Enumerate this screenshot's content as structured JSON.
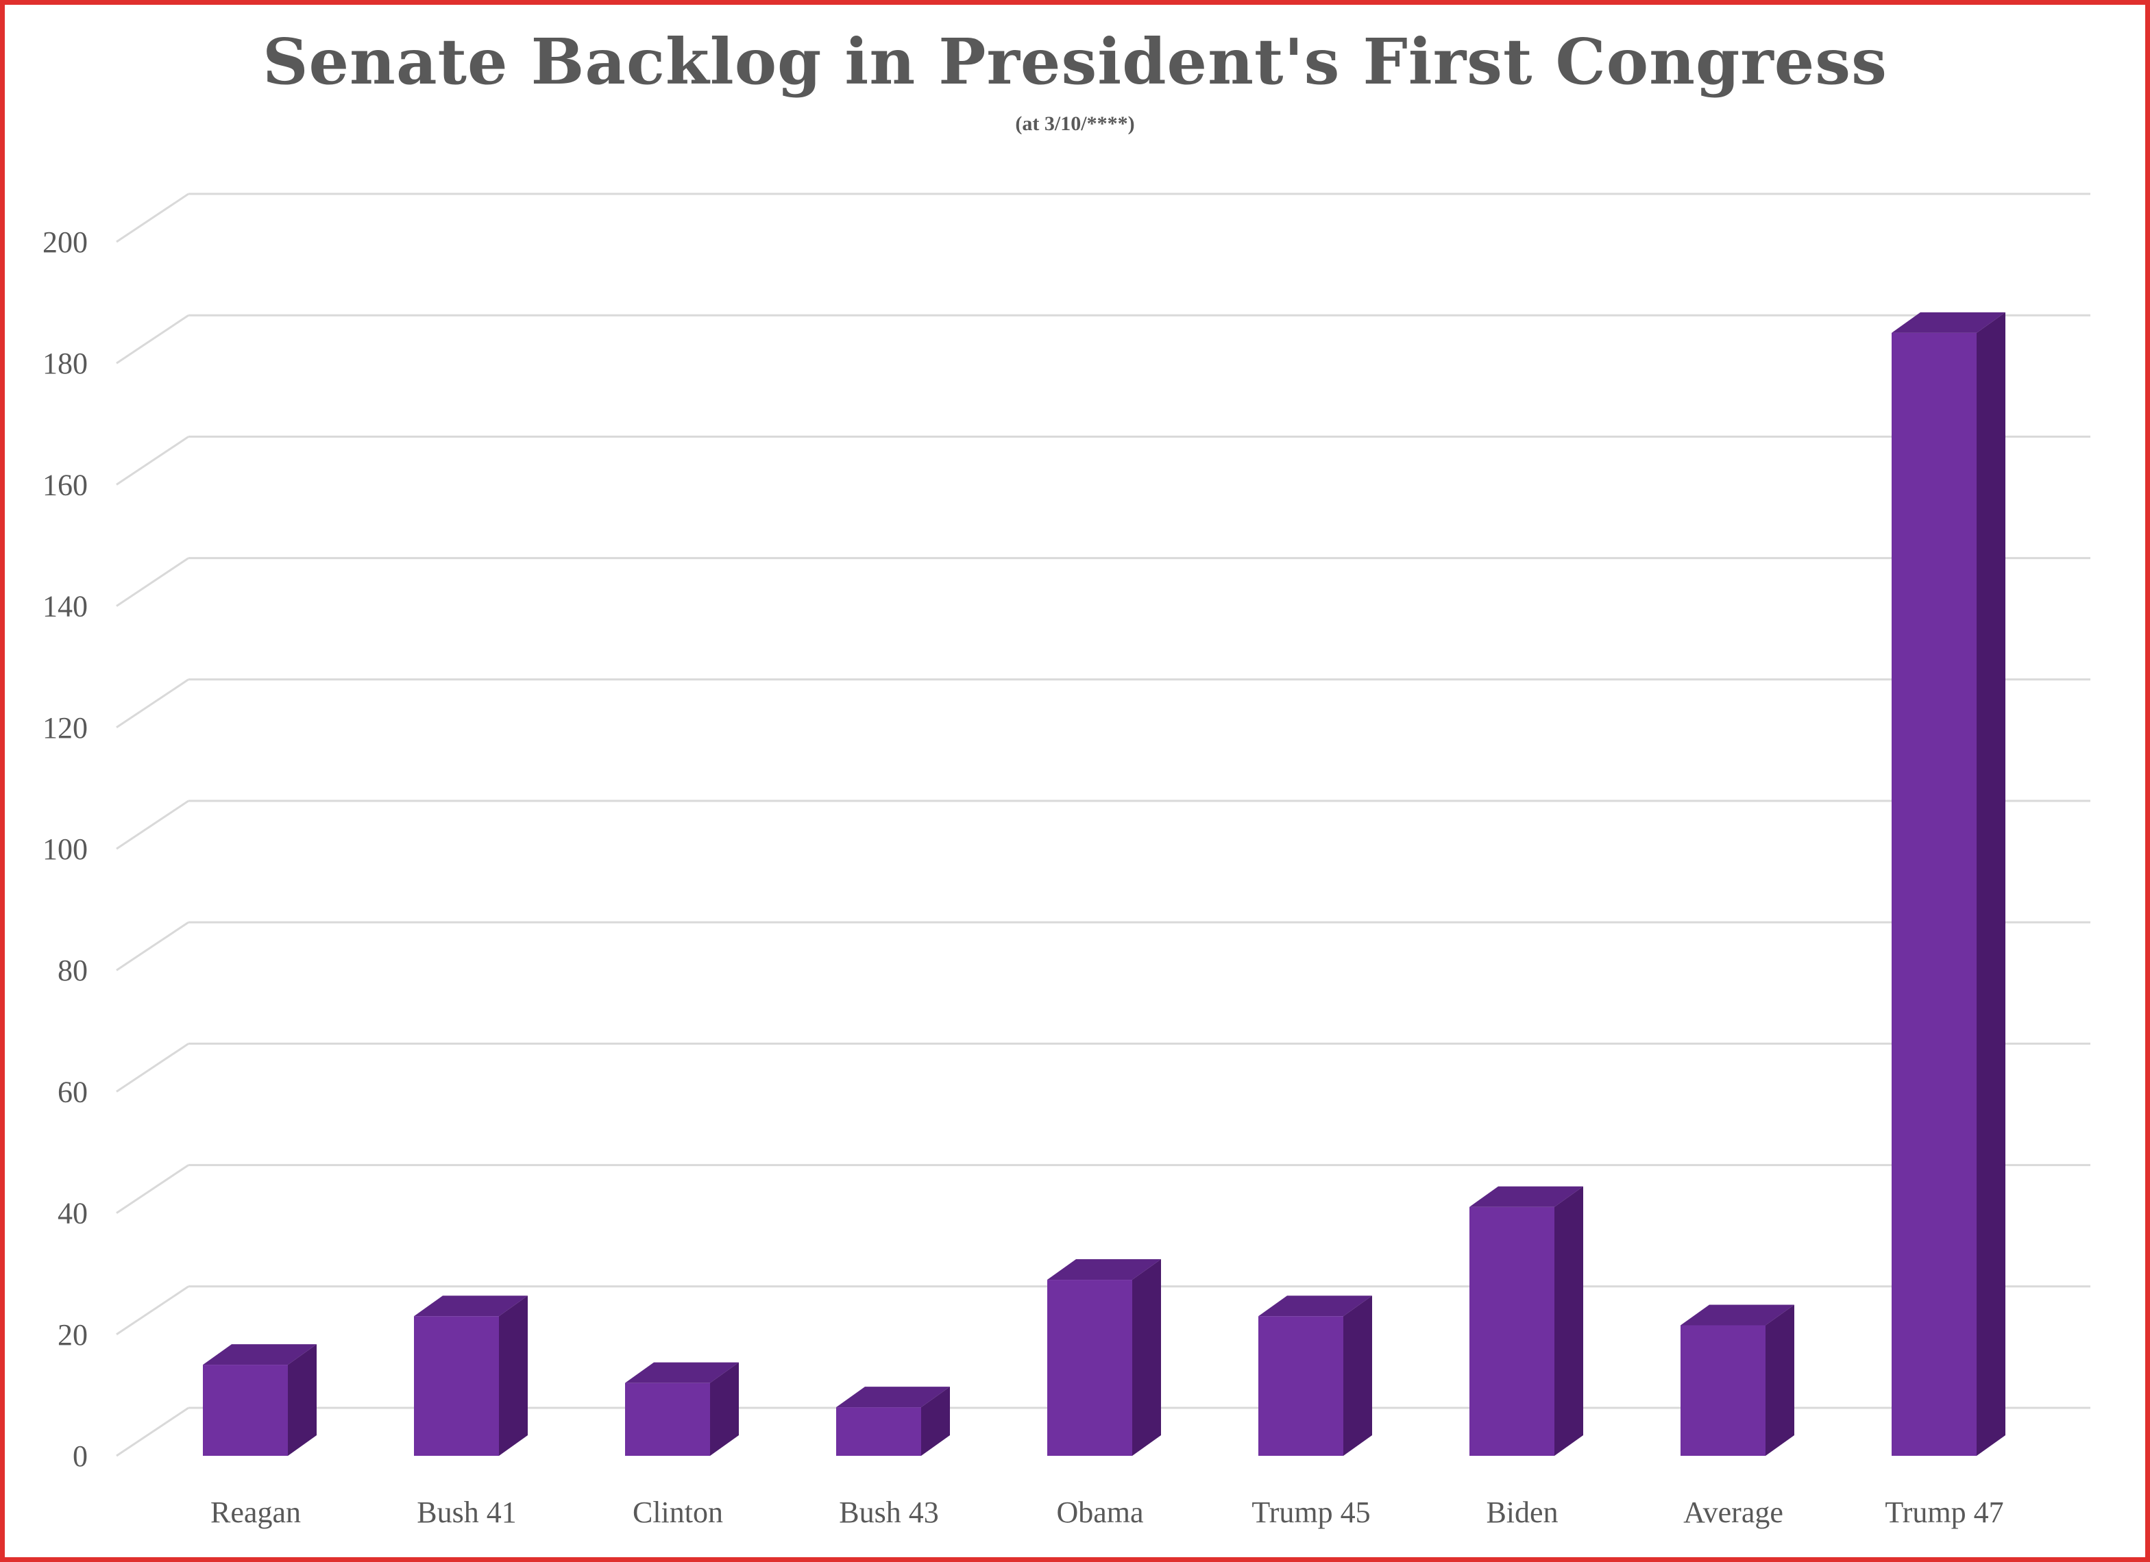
{
  "chart_data": {
    "type": "bar",
    "title": "Senate Backlog in President's First Congress",
    "subtitle": "(at 3/10/****)",
    "categories": [
      "Reagan",
      "Bush 41",
      "Clinton",
      "Bush 43",
      "Obama",
      "Trump 45",
      "Biden",
      "Average",
      "Trump 47"
    ],
    "values": [
      15,
      23,
      12,
      8,
      29,
      23,
      41,
      21.5,
      185
    ],
    "ylim": [
      0,
      200
    ],
    "yticks": [
      0,
      20,
      40,
      60,
      80,
      100,
      120,
      140,
      160,
      180,
      200
    ],
    "grid": true,
    "bar_style": "3d",
    "colors": {
      "bar_front": "#7030a0",
      "bar_side": "#4a1a6b",
      "bar_top": "#5b2584",
      "grid": "#d9d9d9",
      "text": "#595959",
      "border": "#e0302d"
    }
  }
}
